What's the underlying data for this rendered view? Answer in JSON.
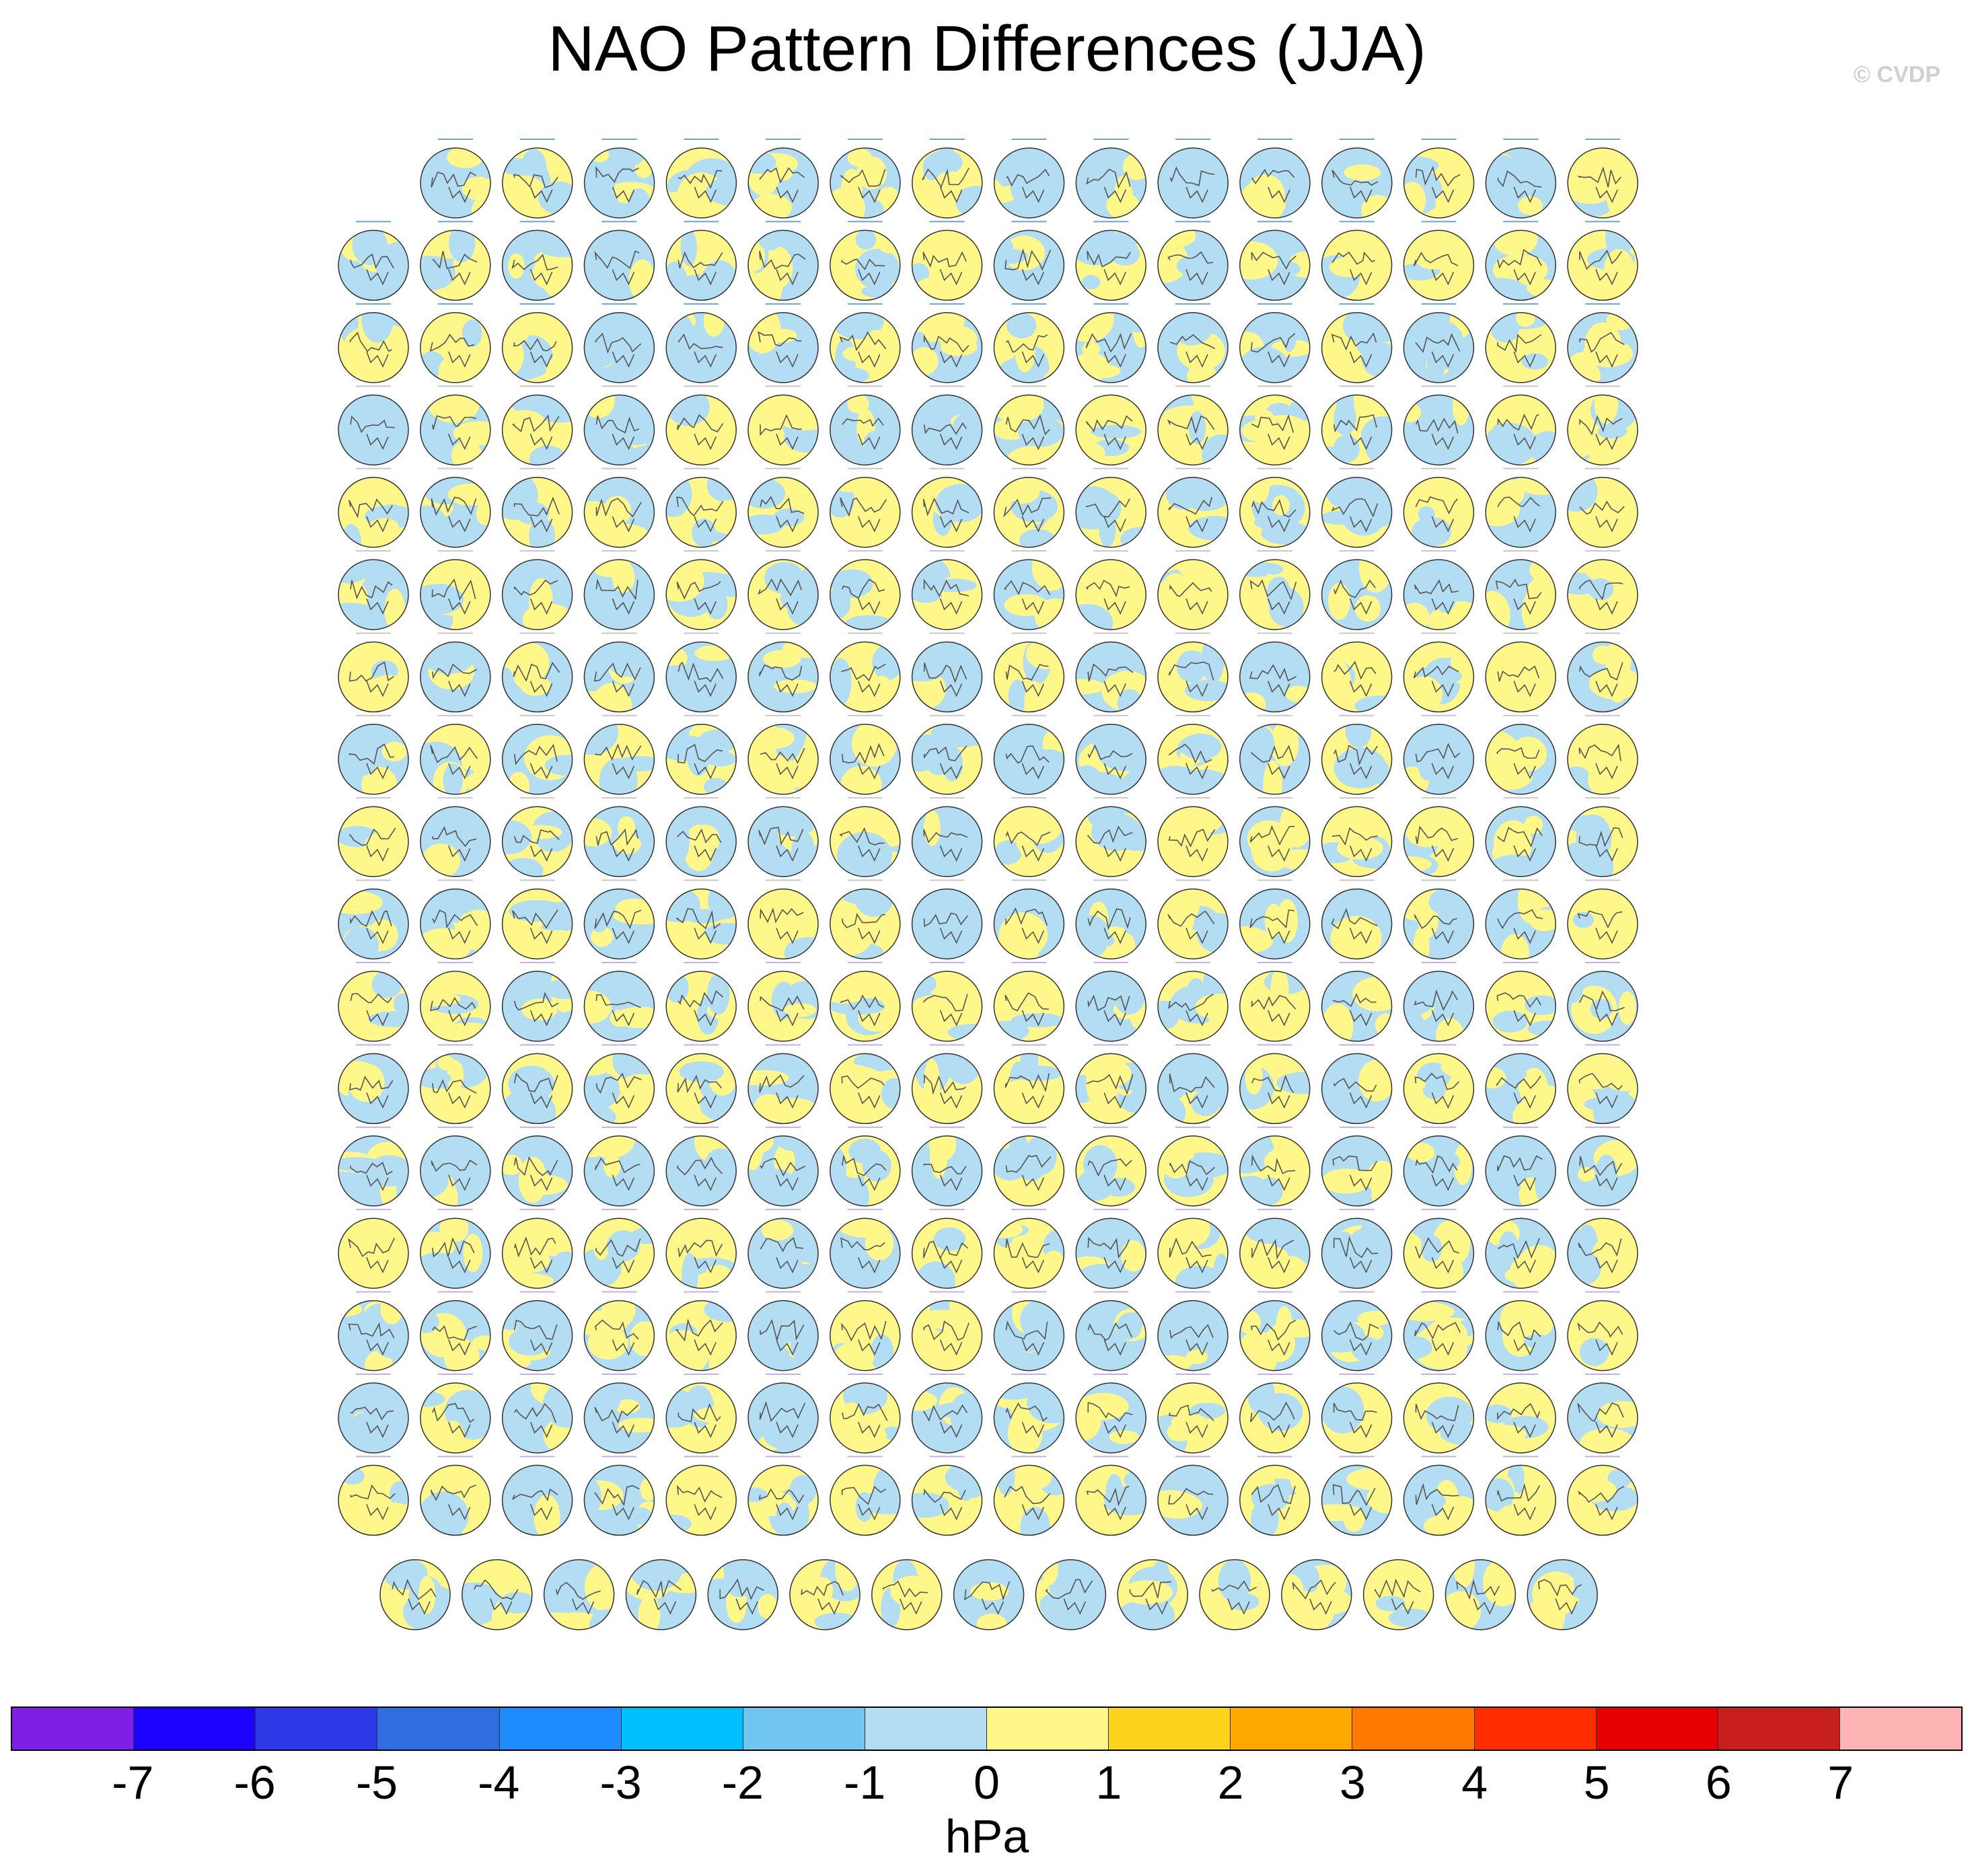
{
  "title": "NAO Pattern Differences (JJA)",
  "watermark": "© CVDP",
  "chart_data": {
    "type": "heatmap",
    "title": "NAO Pattern Differences (JJA)",
    "description_panels": "Grid of polar stereographic Northern Hemisphere maps of sea level pressure pattern differences; 15 panels in first row, 16 panels in rows 2-17, 15 panels in last row",
    "panel_rows": [
      15,
      16,
      16,
      16,
      16,
      16,
      16,
      16,
      16,
      16,
      16,
      16,
      16,
      16,
      16,
      16,
      16,
      15
    ],
    "colorbar": {
      "units": "hPa",
      "tick_labels": [
        "-7",
        "-6",
        "-5",
        "-4",
        "-3",
        "-2",
        "-1",
        "0",
        "1",
        "2",
        "3",
        "4",
        "5",
        "6",
        "7"
      ],
      "colors": [
        "#7f1ee6",
        "#1e00ff",
        "#2b3ae6",
        "#2f6de0",
        "#1e8cff",
        "#00bfff",
        "#70c6f0",
        "#b2ddf2",
        "#fff78a",
        "#ffd21e",
        "#ffa800",
        "#ff7800",
        "#ff2d00",
        "#e60000",
        "#c81e1e",
        "#ffb4b4"
      ]
    }
  }
}
